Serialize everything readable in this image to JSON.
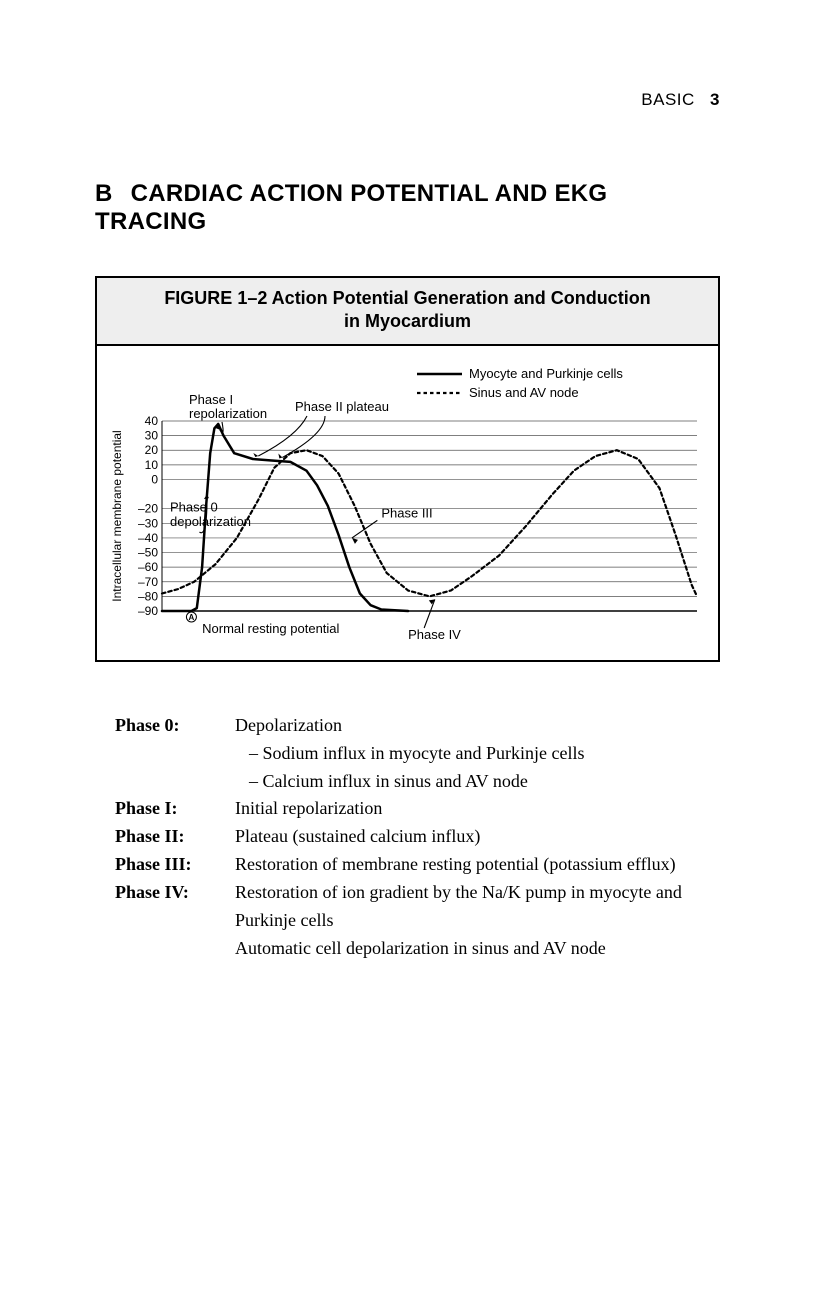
{
  "header": {
    "section": "BASIC",
    "page_number": "3"
  },
  "section": {
    "letter": "B",
    "title": "CARDIAC ACTION POTENTIAL AND EKG TRACING"
  },
  "figure": {
    "title_line1": "FIGURE 1–2  Action Potential Generation and Conduction",
    "title_line2": "in Myocardium",
    "legend": {
      "solid": "Myocyte and Purkinje cells",
      "dotted": "Sinus and AV node"
    },
    "y_axis": {
      "label": "Intracellular membrane potential",
      "ticks": [
        40,
        30,
        20,
        10,
        0,
        -20,
        -30,
        -40,
        -50,
        -60,
        -70,
        -80,
        -90
      ],
      "min": -90,
      "max": 40,
      "grid_color": "#555555"
    },
    "annotations": {
      "phase1": "Phase I\nrepolarization",
      "phase2": "Phase II plateau",
      "phase0": "Phase 0\ndepolarization",
      "phase3": "Phase III",
      "phase4": "Phase IV",
      "resting": "Normal resting potential",
      "marker": "A"
    },
    "colors": {
      "line": "#000000",
      "bg": "#ffffff"
    },
    "solid_stroke_width": 2.5,
    "dotted_stroke_width": 2.2
  },
  "phases": [
    {
      "label": "Phase 0:",
      "lines": [
        "Depolarization"
      ],
      "subs": [
        "Sodium influx in myocyte and Purkinje cells",
        "Calcium influx in sinus and AV node"
      ]
    },
    {
      "label": "Phase I:",
      "lines": [
        "Initial repolarization"
      ],
      "subs": []
    },
    {
      "label": "Phase II:",
      "lines": [
        "Plateau (sustained calcium influx)"
      ],
      "subs": []
    },
    {
      "label": "Phase III:",
      "lines": [
        "Restoration of membrane resting potential (potassium efflux)"
      ],
      "subs": []
    },
    {
      "label": "Phase IV:",
      "lines": [
        "Restoration of ion gradient by the Na/K pump in myocyte and Purkinje cells",
        "Automatic cell depolarization in sinus and AV node"
      ],
      "subs": []
    }
  ]
}
